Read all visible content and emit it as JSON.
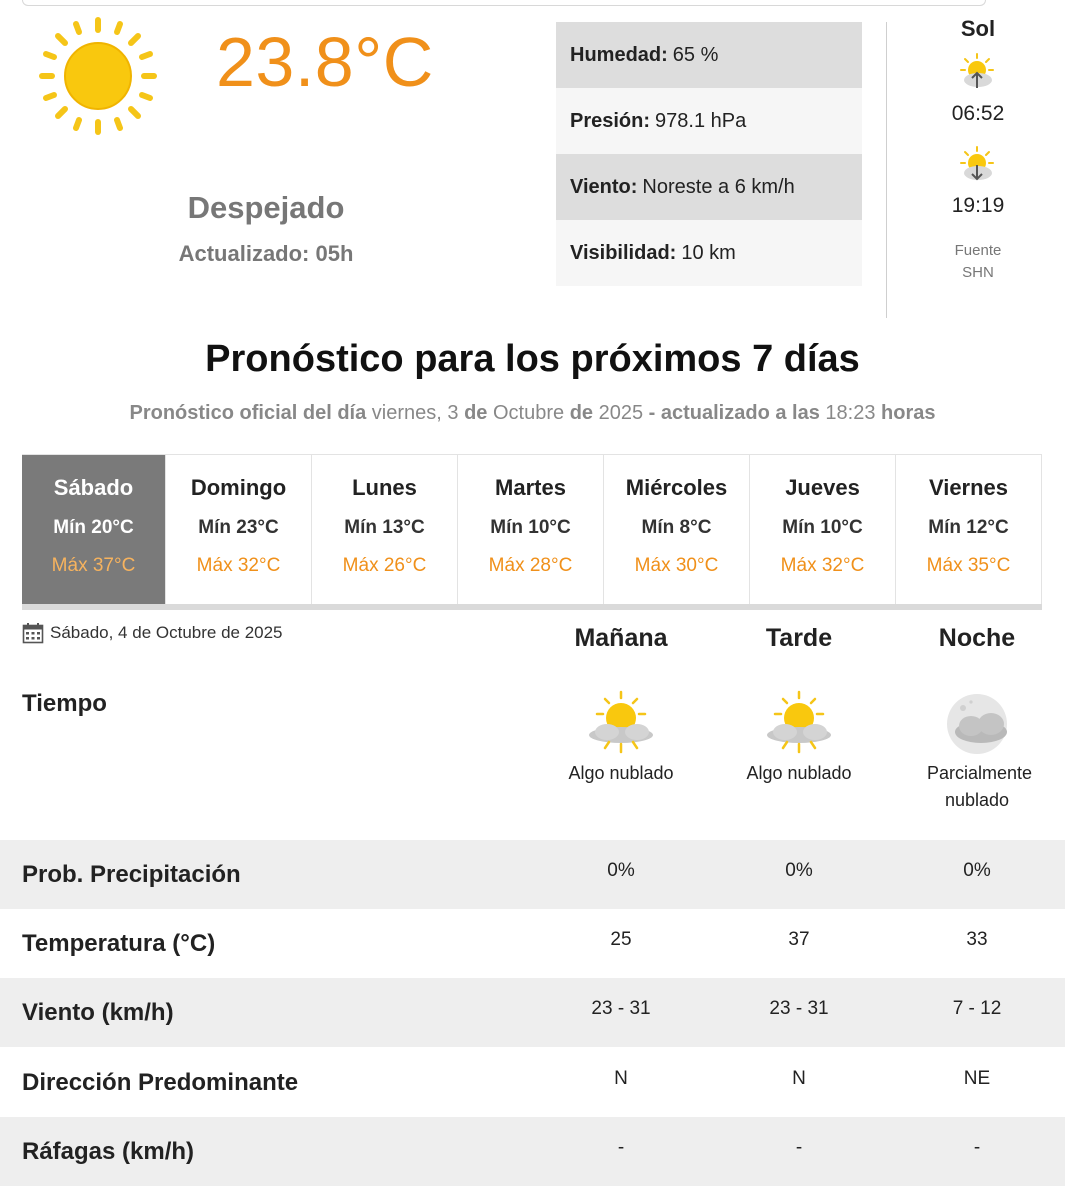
{
  "current": {
    "temperature": "23.8°C",
    "condition": "Despejado",
    "updated": "Actualizado: 05h",
    "icon": "sun-icon",
    "accent_color": "#f0901a"
  },
  "stats": [
    {
      "label": "Humedad:",
      "value": "65 %"
    },
    {
      "label": "Presión:",
      "value": "978.1 hPa"
    },
    {
      "label": "Viento:",
      "value": "Noreste a 6 km/h"
    },
    {
      "label": "Visibilidad:",
      "value": "10 km"
    }
  ],
  "sun": {
    "title": "Sol",
    "sunrise": "06:52",
    "sunset": "19:19",
    "source_label": "Fuente",
    "source": "SHN"
  },
  "forecast": {
    "title": "Pronóstico para los próximos 7 días",
    "subtitle": {
      "p1": "Pronóstico oficial del día",
      "weekday": "viernes, 3",
      "de1": "de",
      "month": "Octubre",
      "de2": "de",
      "year": "2025",
      "p2": "- actualizado a las",
      "time": "18:23",
      "p3": "horas"
    },
    "days": [
      {
        "name": "Sábado",
        "min": "Mín 20°C",
        "max": "Máx 37°C",
        "active": true
      },
      {
        "name": "Domingo",
        "min": "Mín 23°C",
        "max": "Máx 32°C"
      },
      {
        "name": "Lunes",
        "min": "Mín 13°C",
        "max": "Máx 26°C"
      },
      {
        "name": "Martes",
        "min": "Mín 10°C",
        "max": "Máx 28°C"
      },
      {
        "name": "Miércoles",
        "min": "Mín 8°C",
        "max": "Máx 30°C"
      },
      {
        "name": "Jueves",
        "min": "Mín 10°C",
        "max": "Máx 32°C"
      },
      {
        "name": "Viernes",
        "min": "Mín 12°C",
        "max": "Máx 35°C"
      }
    ]
  },
  "detail": {
    "date": "Sábado, 4 de Octubre de 2025",
    "columns": [
      "Mañana",
      "Tarde",
      "Noche"
    ],
    "tiempo_label": "Tiempo",
    "weather": [
      {
        "icon": "sun-cloud-icon",
        "desc": "Algo nublado"
      },
      {
        "icon": "sun-cloud-icon",
        "desc": "Algo nublado"
      },
      {
        "icon": "moon-cloud-icon",
        "desc": "Parcialmente nublado"
      }
    ],
    "rows": [
      {
        "label": "Prob. Precipitación",
        "values": [
          "0%",
          "0%",
          "0%"
        ]
      },
      {
        "label": "Temperatura (°C)",
        "values": [
          "25",
          "37",
          "33"
        ]
      },
      {
        "label": "Viento (km/h)",
        "values": [
          "23 - 31",
          "23 - 31",
          "7 - 12"
        ]
      },
      {
        "label": "Dirección Predominante",
        "values": [
          "N",
          "N",
          "NE"
        ]
      },
      {
        "label": "Ráfagas (km/h)",
        "values": [
          "-",
          "-",
          "-"
        ]
      }
    ]
  }
}
